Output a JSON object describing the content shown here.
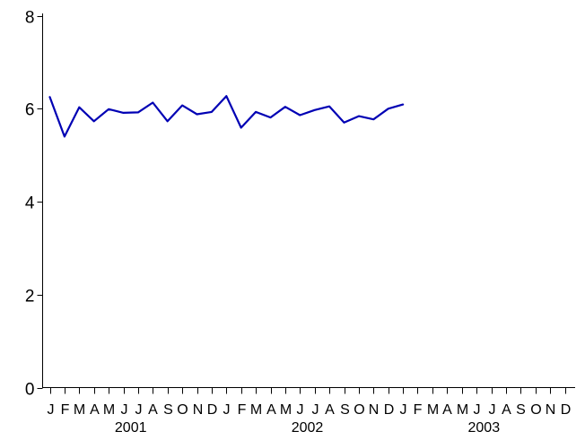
{
  "chart_data": {
    "type": "line",
    "title": "",
    "xlabel": "",
    "ylabel": "",
    "ylim": [
      0,
      8
    ],
    "yticks": [
      "0",
      "2",
      "4",
      "6",
      "8"
    ],
    "ytick_values": [
      0,
      2,
      4,
      6,
      8
    ],
    "x_months": [
      "J",
      "F",
      "M",
      "A",
      "M",
      "J",
      "J",
      "A",
      "S",
      "O",
      "N",
      "D",
      "J",
      "F",
      "M",
      "A",
      "M",
      "J",
      "J",
      "A",
      "S",
      "O",
      "N",
      "D",
      "J",
      "F",
      "M",
      "A",
      "M",
      "J",
      "J",
      "A",
      "S",
      "O",
      "N",
      "D"
    ],
    "x_years": [
      {
        "label": "2001",
        "start_index": 0
      },
      {
        "label": "2002",
        "start_index": 12
      },
      {
        "label": "2003",
        "start_index": 24
      }
    ],
    "grid": false,
    "legend": "none",
    "series": [
      {
        "color": "#0000b4",
        "x": [
          "2001-01",
          "2001-02",
          "2001-03",
          "2001-04",
          "2001-05",
          "2001-06",
          "2001-07",
          "2001-08",
          "2001-09",
          "2001-10",
          "2001-11",
          "2001-12",
          "2002-01",
          "2002-02",
          "2002-03",
          "2002-04",
          "2002-05",
          "2002-06",
          "2002-07",
          "2002-08",
          "2002-09",
          "2002-10",
          "2002-11",
          "2002-12",
          "2003-01"
        ],
        "values": [
          6.25,
          5.4,
          6.03,
          5.73,
          5.99,
          5.91,
          5.92,
          6.13,
          5.73,
          6.07,
          5.88,
          5.93,
          6.27,
          5.59,
          5.93,
          5.81,
          6.04,
          5.86,
          5.97,
          6.05,
          5.7,
          5.84,
          5.77,
          6.0,
          6.09
        ]
      }
    ]
  }
}
